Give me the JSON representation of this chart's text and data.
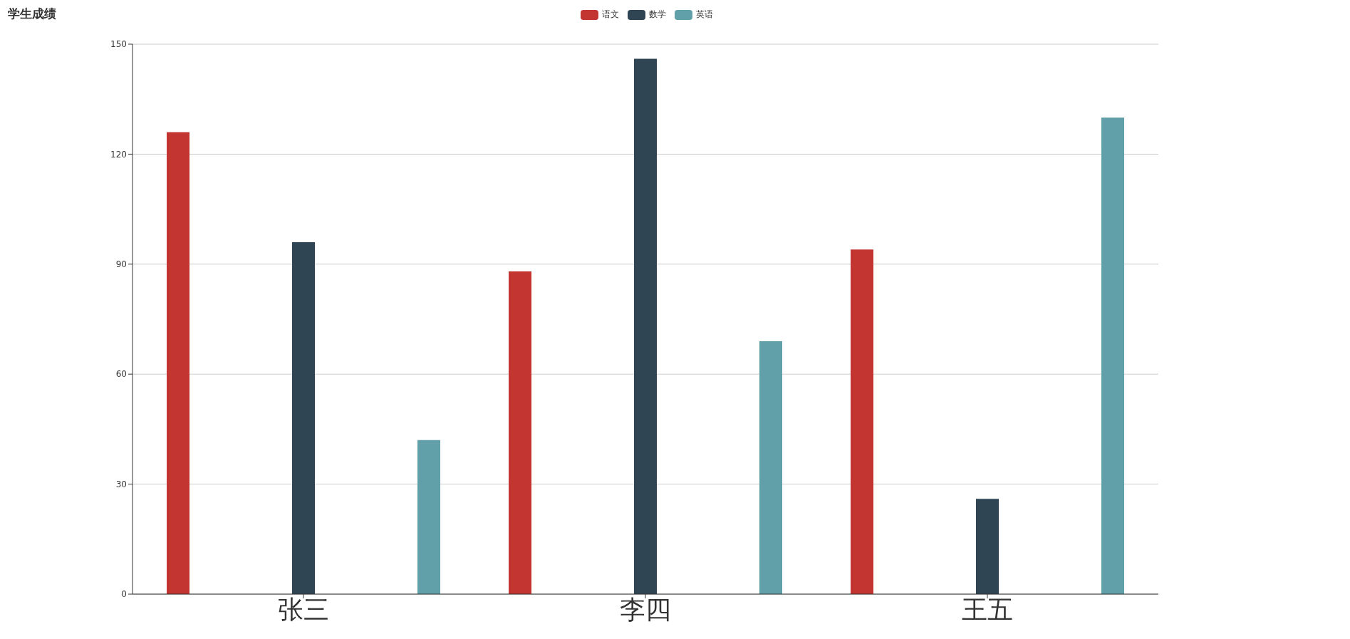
{
  "chart_data": {
    "type": "bar",
    "title": "学生成绩",
    "categories": [
      "张三",
      "李四",
      "王五"
    ],
    "series": [
      {
        "name": "语文",
        "color": "#c23531",
        "values": [
          126,
          88,
          94
        ]
      },
      {
        "name": "数学",
        "color": "#2f4554",
        "values": [
          96,
          146,
          26
        ]
      },
      {
        "name": "英语",
        "color": "#61a0a8",
        "values": [
          42,
          69,
          130
        ]
      }
    ],
    "ylim": [
      0,
      150
    ],
    "yticks": [
      0,
      30,
      60,
      90,
      120,
      150
    ],
    "grid": "y",
    "legend": "top"
  }
}
